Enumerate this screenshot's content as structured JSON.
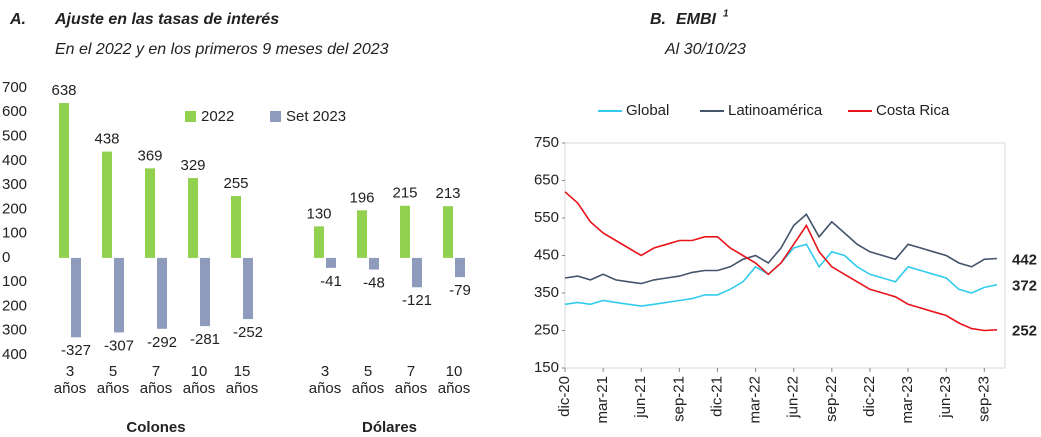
{
  "chart_data": [
    {
      "type": "bar",
      "panel_label": "A.",
      "title": "Ajuste en las tasas de interés",
      "subtitle": "En el 2022 y en los primeros 9 meses del 2023",
      "categories": [
        "3 años",
        "5 años",
        "7 años",
        "10 años",
        "15 años",
        "3 años",
        "5 años",
        "7 años",
        "10 años"
      ],
      "group_labels": [
        "Colones",
        "Dólares"
      ],
      "category_groups": [
        0,
        0,
        0,
        0,
        0,
        1,
        1,
        1,
        1
      ],
      "series": [
        {
          "name": "2022",
          "color": "#92d050",
          "values": [
            638,
            438,
            369,
            329,
            255,
            130,
            196,
            215,
            213
          ]
        },
        {
          "name": "Set 2023",
          "color": "#8e9bbc",
          "values": [
            -327,
            -307,
            -292,
            -281,
            -252,
            -41,
            -48,
            -121,
            -79
          ]
        }
      ],
      "ylim": [
        -400,
        700
      ],
      "yticks": [
        700,
        600,
        500,
        400,
        300,
        200,
        100,
        0,
        {
          "value": -100,
          "label": "100"
        },
        {
          "value": -200,
          "label": "200"
        },
        {
          "value": -300,
          "label": "300"
        },
        {
          "value": -400,
          "label": "400"
        }
      ]
    },
    {
      "type": "line",
      "panel_label": "B.",
      "title": "EMBI",
      "title_note": "1",
      "subtitle": "Al 30/10/23",
      "x": [
        "2020-12",
        "2021-01",
        "2021-02",
        "2021-03",
        "2021-04",
        "2021-05",
        "2021-06",
        "2021-07",
        "2021-08",
        "2021-09",
        "2021-10",
        "2021-11",
        "2021-12",
        "2022-01",
        "2022-02",
        "2022-03",
        "2022-04",
        "2022-05",
        "2022-06",
        "2022-07",
        "2022-08",
        "2022-09",
        "2022-10",
        "2022-11",
        "2022-12",
        "2023-01",
        "2023-02",
        "2023-03",
        "2023-04",
        "2023-05",
        "2023-06",
        "2023-07",
        "2023-08",
        "2023-09",
        "2023-10"
      ],
      "series": [
        {
          "name": "Global",
          "color": "#33ccee",
          "values": [
            320,
            325,
            320,
            330,
            325,
            320,
            315,
            320,
            325,
            330,
            335,
            345,
            345,
            360,
            380,
            420,
            400,
            430,
            470,
            480,
            420,
            460,
            450,
            420,
            400,
            390,
            380,
            420,
            410,
            400,
            390,
            360,
            350,
            365,
            372
          ]
        },
        {
          "name": "Latinoamérica",
          "color": "#44546a",
          "values": [
            390,
            395,
            385,
            400,
            385,
            380,
            375,
            385,
            390,
            395,
            405,
            410,
            410,
            420,
            440,
            450,
            430,
            470,
            530,
            560,
            500,
            540,
            510,
            480,
            460,
            450,
            440,
            480,
            470,
            460,
            450,
            430,
            420,
            440,
            442
          ]
        },
        {
          "name": "Costa Rica",
          "color": "#e8141c",
          "values": [
            620,
            590,
            540,
            510,
            490,
            470,
            450,
            470,
            480,
            490,
            490,
            500,
            500,
            470,
            450,
            430,
            400,
            430,
            480,
            530,
            460,
            420,
            400,
            380,
            360,
            350,
            340,
            320,
            310,
            300,
            290,
            270,
            255,
            250,
            252
          ]
        }
      ],
      "ylim": [
        150,
        750
      ],
      "yticks": [
        150,
        250,
        350,
        450,
        550,
        650,
        750
      ],
      "xticks": [
        {
          "value": "2020-12",
          "label": "dic-20"
        },
        {
          "value": "2021-03",
          "label": "mar-21"
        },
        {
          "value": "2021-06",
          "label": "jun-21"
        },
        {
          "value": "2021-09",
          "label": "sep-21"
        },
        {
          "value": "2021-12",
          "label": "dic-21"
        },
        {
          "value": "2022-03",
          "label": "mar-22"
        },
        {
          "value": "2022-06",
          "label": "jun-22"
        },
        {
          "value": "2022-09",
          "label": "sep-22"
        },
        {
          "value": "2022-12",
          "label": "dic-22"
        },
        {
          "value": "2023-03",
          "label": "mar-23"
        },
        {
          "value": "2023-06",
          "label": "jun-23"
        },
        {
          "value": "2023-09",
          "label": "sep-23"
        }
      ]
    }
  ]
}
